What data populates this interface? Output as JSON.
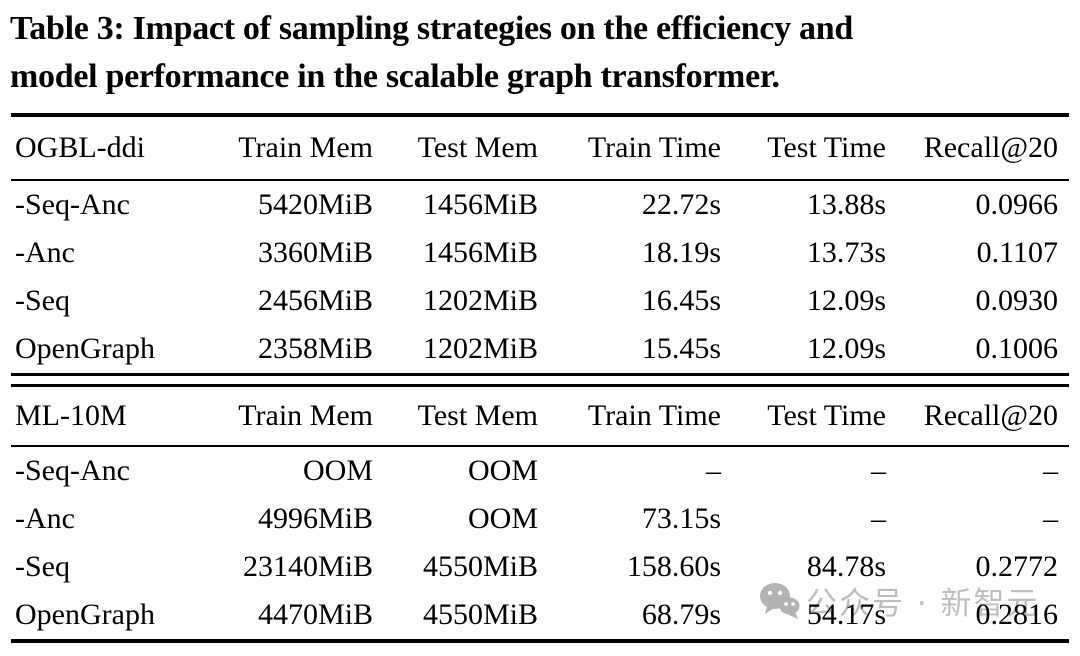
{
  "caption": {
    "line1": "Table 3: Impact of sampling strategies on the efficiency and",
    "line2": "model performance in the scalable graph transformer."
  },
  "tables": [
    {
      "id": "ogbl-ddi",
      "header": [
        "OGBL-ddi",
        "Train Mem",
        "Test Mem",
        "Train Time",
        "Test Time",
        "Recall@20"
      ],
      "rows": [
        [
          "-Seq-Anc",
          "5420MiB",
          "1456MiB",
          "22.72s",
          "13.88s",
          "0.0966"
        ],
        [
          "-Anc",
          "3360MiB",
          "1456MiB",
          "18.19s",
          "13.73s",
          "0.1107"
        ],
        [
          "-Seq",
          "2456MiB",
          "1202MiB",
          "16.45s",
          "12.09s",
          "0.0930"
        ],
        [
          "OpenGraph",
          "2358MiB",
          "1202MiB",
          "15.45s",
          "12.09s",
          "0.1006"
        ]
      ]
    },
    {
      "id": "ml-10m",
      "header": [
        "ML-10M",
        "Train Mem",
        "Test Mem",
        "Train Time",
        "Test Time",
        "Recall@20"
      ],
      "rows": [
        [
          "-Seq-Anc",
          "OOM",
          "OOM",
          "–",
          "–",
          "–"
        ],
        [
          "-Anc",
          "4996MiB",
          "OOM",
          "73.15s",
          "–",
          "–"
        ],
        [
          "-Seq",
          "23140MiB",
          "4550MiB",
          "158.60s",
          "84.78s",
          "0.2772"
        ],
        [
          "OpenGraph",
          "4470MiB",
          "4550MiB",
          "68.79s",
          "54.17s",
          "0.2816"
        ]
      ]
    }
  ],
  "watermark": {
    "icon": "wechat-speech-bubbles-icon",
    "text": "公众号 · 新智元",
    "color": "#969696"
  },
  "colors": {
    "text": "#000000",
    "rule": "#000000",
    "background": "#ffffff"
  }
}
